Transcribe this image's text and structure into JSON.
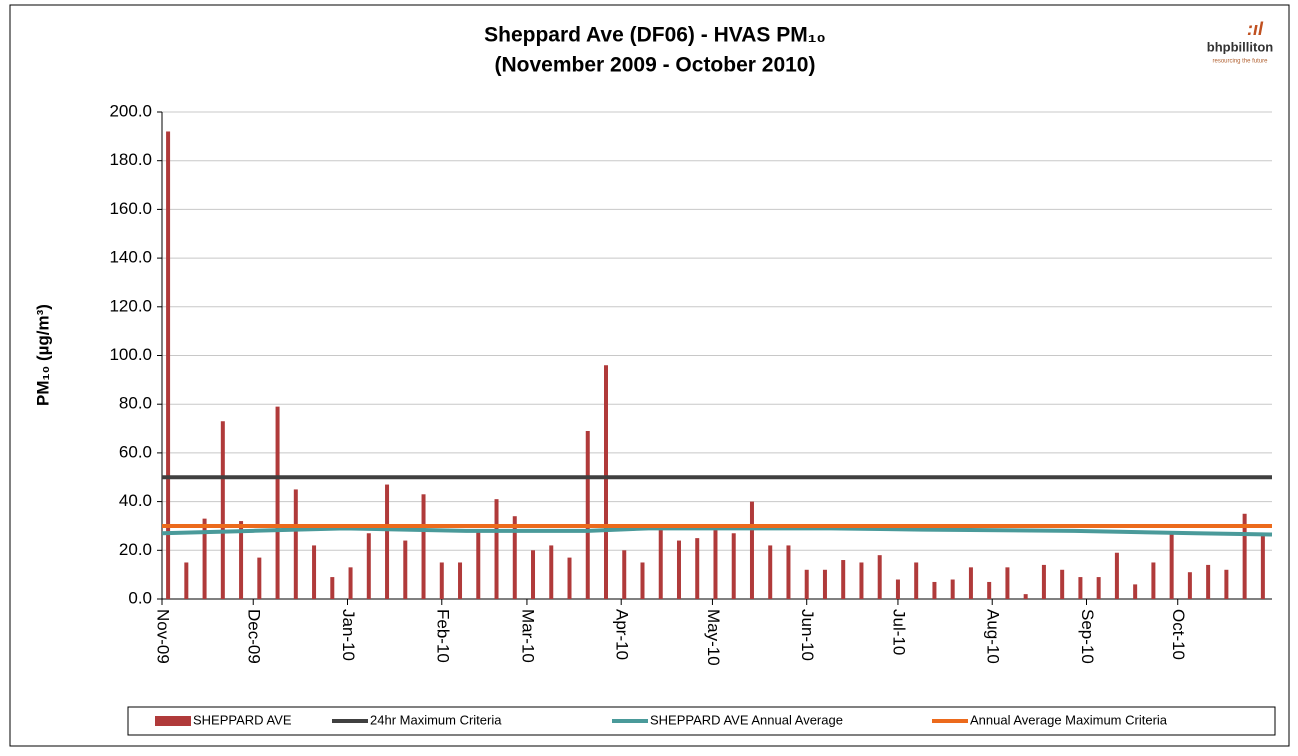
{
  "chart_data": {
    "type": "bar",
    "title": "Sheppard Ave (DF06) - HVAS PM₁₀",
    "subtitle": "(November 2009 - October 2010)",
    "logo": {
      "name": "bhpbilliton",
      "tagline": "resourcing the future"
    },
    "ylabel": "PM₁₀ (µg/m³)",
    "xlim": [
      0,
      365
    ],
    "xticks": [
      {
        "value": 0,
        "label": "Nov-09"
      },
      {
        "value": 30,
        "label": "Dec-09"
      },
      {
        "value": 61,
        "label": "Jan-10"
      },
      {
        "value": 92,
        "label": "Feb-10"
      },
      {
        "value": 120,
        "label": "Mar-10"
      },
      {
        "value": 151,
        "label": "Apr-10"
      },
      {
        "value": 181,
        "label": "May-10"
      },
      {
        "value": 212,
        "label": "Jun-10"
      },
      {
        "value": 242,
        "label": "Jul-10"
      },
      {
        "value": 273,
        "label": "Aug-10"
      },
      {
        "value": 304,
        "label": "Sep-10"
      },
      {
        "value": 334,
        "label": "Oct-10"
      }
    ],
    "ylim": [
      0,
      200
    ],
    "yticks": [
      {
        "value": 0,
        "label": "0.0"
      },
      {
        "value": 20,
        "label": "20.0"
      },
      {
        "value": 40,
        "label": "40.0"
      },
      {
        "value": 60,
        "label": "60.0"
      },
      {
        "value": 80,
        "label": "80.0"
      },
      {
        "value": 100,
        "label": "100.0"
      },
      {
        "value": 120,
        "label": "120.0"
      },
      {
        "value": 140,
        "label": "140.0"
      },
      {
        "value": 160,
        "label": "160.0"
      },
      {
        "value": 180,
        "label": "180.0"
      },
      {
        "value": 200,
        "label": "200.0"
      }
    ],
    "grid": true,
    "legend": "bottom",
    "series": [
      {
        "name": "SHEPPARD AVE",
        "type": "bar",
        "color": "#b03a3a",
        "x": [
          2,
          8,
          14,
          20,
          26,
          32,
          38,
          44,
          50,
          56,
          62,
          68,
          74,
          80,
          86,
          92,
          98,
          104,
          110,
          116,
          122,
          128,
          134,
          140,
          146,
          152,
          158,
          164,
          170,
          176,
          182,
          188,
          194,
          200,
          206,
          212,
          218,
          224,
          230,
          236,
          242,
          248,
          254,
          260,
          266,
          272,
          278,
          284,
          290,
          296,
          302,
          308,
          314,
          320,
          326,
          332,
          338,
          344,
          350,
          356,
          362
        ],
        "values": [
          192,
          15,
          33,
          73,
          32,
          17,
          79,
          45,
          22,
          9,
          13,
          27,
          47,
          24,
          43,
          15,
          15,
          28,
          41,
          34,
          20,
          22,
          17,
          69,
          96,
          20,
          15,
          29,
          24,
          25,
          29,
          27,
          40,
          22,
          22,
          12,
          12,
          16,
          15,
          18,
          8,
          15,
          7,
          8,
          13,
          7,
          13,
          2,
          14,
          12,
          9,
          9,
          19,
          6,
          15,
          27,
          11,
          14,
          12,
          35,
          26
        ]
      },
      {
        "name": "24hr Maximum Criteria",
        "type": "line",
        "color": "#404040",
        "x": [
          0,
          365
        ],
        "values": [
          50,
          50
        ]
      },
      {
        "name": "SHEPPARD AVE Annual Average",
        "type": "line",
        "color": "#4a9a9a",
        "x": [
          0,
          30,
          60,
          100,
          140,
          160,
          220,
          250,
          300,
          340,
          365
        ],
        "values": [
          27,
          28,
          29,
          28,
          28,
          29,
          29,
          28.5,
          28,
          27,
          26.5
        ]
      },
      {
        "name": "Annual Average Maximum Criteria",
        "type": "line",
        "color": "#ec6a1c",
        "x": [
          0,
          365
        ],
        "values": [
          30,
          30
        ]
      }
    ]
  }
}
